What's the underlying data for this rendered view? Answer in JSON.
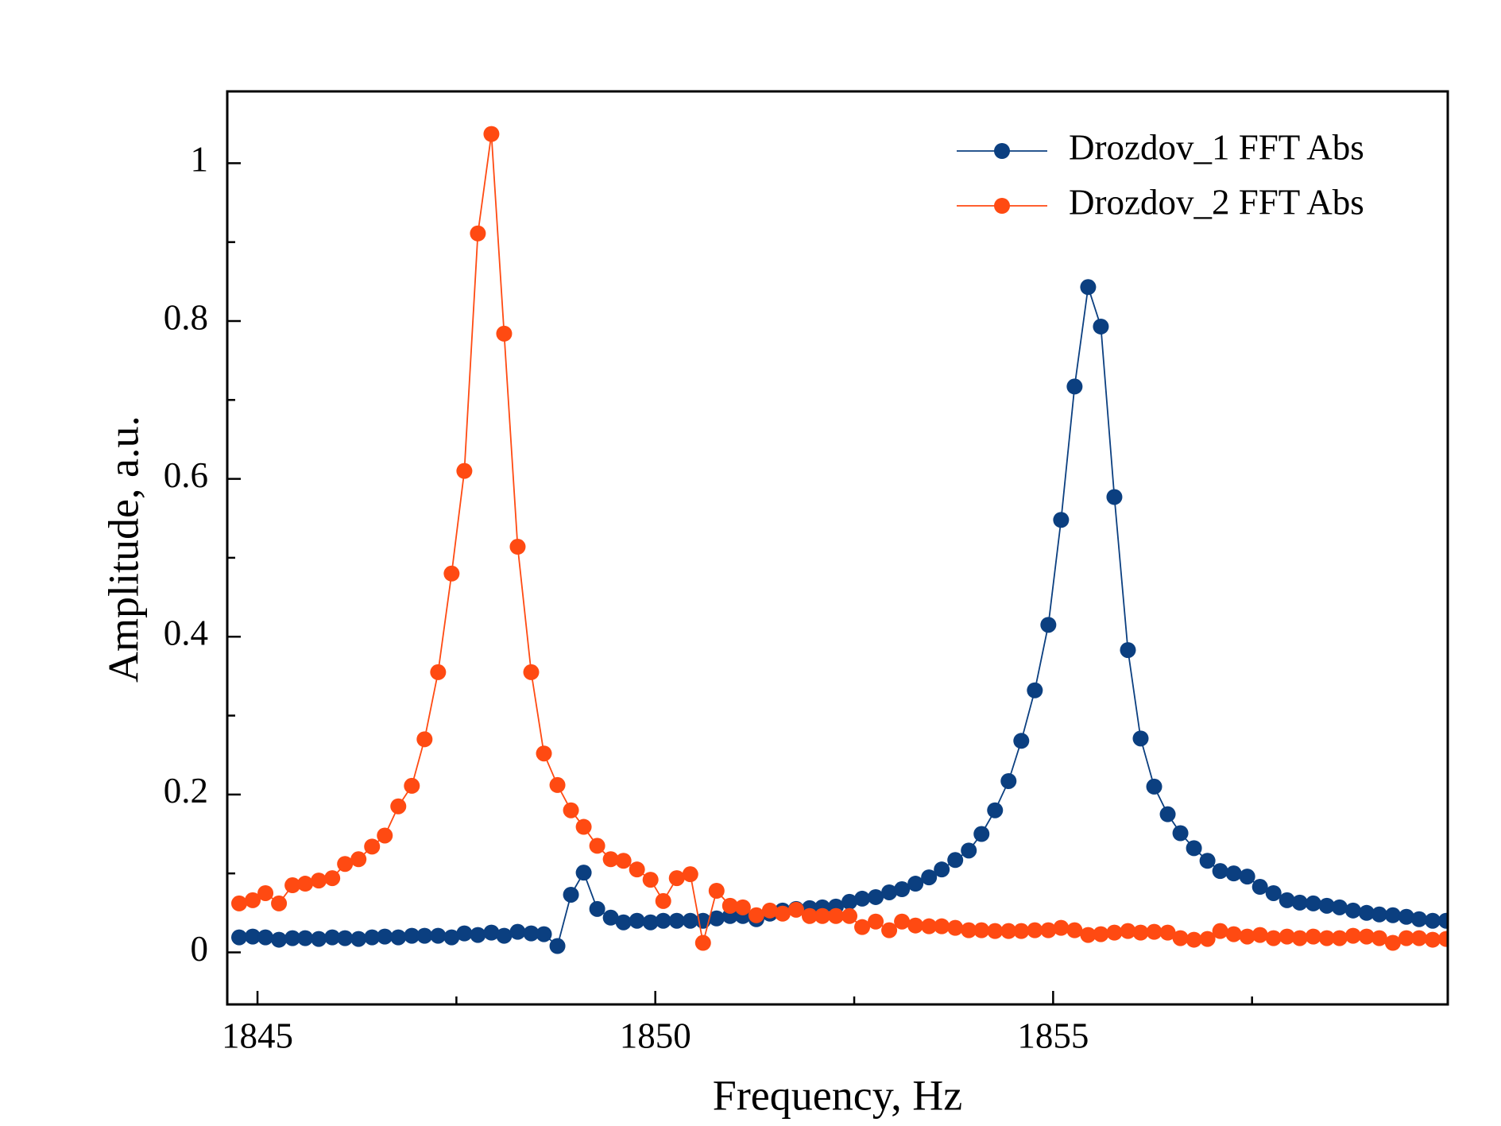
{
  "chart_data": {
    "type": "line",
    "xlabel": "Frequency, Hz",
    "ylabel": "Amplitude, a.u.",
    "xlim": [
      1844.62,
      1859.96
    ],
    "ylim": [
      -0.066,
      1.091
    ],
    "xticks": [
      1845,
      1850,
      1855
    ],
    "xminorticks": [
      1847.5,
      1852.5,
      1857.5
    ],
    "yticks": [
      0,
      0.2,
      0.4,
      0.6,
      0.8,
      1
    ],
    "yminorticks": [
      0.1,
      0.3,
      0.5,
      0.7,
      0.9
    ],
    "legend": "upper right",
    "x": [
      1844.77,
      1844.94,
      1845.1,
      1845.27,
      1845.44,
      1845.6,
      1845.77,
      1845.94,
      1846.1,
      1846.27,
      1846.44,
      1846.6,
      1846.77,
      1846.94,
      1847.1,
      1847.27,
      1847.44,
      1847.6,
      1847.77,
      1847.94,
      1848.1,
      1848.27,
      1848.44,
      1848.6,
      1848.77,
      1848.94,
      1849.1,
      1849.27,
      1849.44,
      1849.6,
      1849.77,
      1849.94,
      1850.1,
      1850.27,
      1850.44,
      1850.6,
      1850.77,
      1850.94,
      1851.1,
      1851.27,
      1851.44,
      1851.6,
      1851.77,
      1851.94,
      1852.1,
      1852.27,
      1852.44,
      1852.6,
      1852.77,
      1852.94,
      1853.1,
      1853.27,
      1853.44,
      1853.6,
      1853.77,
      1853.94,
      1854.1,
      1854.27,
      1854.44,
      1854.6,
      1854.77,
      1854.94,
      1855.1,
      1855.27,
      1855.44,
      1855.6,
      1855.77,
      1855.94,
      1856.1,
      1856.27,
      1856.44,
      1856.6,
      1856.77,
      1856.94,
      1857.1,
      1857.27,
      1857.44,
      1857.6,
      1857.77,
      1857.94,
      1858.1,
      1858.27,
      1858.44,
      1858.6,
      1858.77,
      1858.94,
      1859.1,
      1859.27,
      1859.44,
      1859.6,
      1859.77,
      1859.94
    ],
    "series": [
      {
        "name": "Drozdov_1 FFT Abs",
        "color": "#0b3f80",
        "values": [
          0.019,
          0.02,
          0.019,
          0.016,
          0.018,
          0.018,
          0.017,
          0.019,
          0.018,
          0.017,
          0.019,
          0.02,
          0.019,
          0.021,
          0.021,
          0.021,
          0.019,
          0.024,
          0.022,
          0.025,
          0.021,
          0.026,
          0.024,
          0.023,
          0.008,
          0.073,
          0.101,
          0.055,
          0.044,
          0.038,
          0.04,
          0.038,
          0.04,
          0.04,
          0.04,
          0.04,
          0.043,
          0.046,
          0.046,
          0.042,
          0.049,
          0.053,
          0.055,
          0.056,
          0.057,
          0.058,
          0.064,
          0.068,
          0.07,
          0.076,
          0.08,
          0.087,
          0.095,
          0.105,
          0.117,
          0.129,
          0.15,
          0.18,
          0.217,
          0.268,
          0.332,
          0.415,
          0.548,
          0.717,
          0.843,
          0.793,
          0.577,
          0.383,
          0.271,
          0.21,
          0.175,
          0.151,
          0.132,
          0.116,
          0.103,
          0.1,
          0.096,
          0.083,
          0.075,
          0.066,
          0.063,
          0.062,
          0.059,
          0.057,
          0.053,
          0.05,
          0.048,
          0.047,
          0.045,
          0.042,
          0.04,
          0.04
        ]
      },
      {
        "name": "Drozdov_2 FFT Abs",
        "color": "#ff4a12",
        "values": [
          0.062,
          0.066,
          0.075,
          0.062,
          0.085,
          0.087,
          0.091,
          0.094,
          0.112,
          0.118,
          0.134,
          0.148,
          0.185,
          0.211,
          0.27,
          0.355,
          0.48,
          0.61,
          0.911,
          1.037,
          0.784,
          0.514,
          0.355,
          0.252,
          0.212,
          0.18,
          0.159,
          0.135,
          0.118,
          0.116,
          0.105,
          0.092,
          0.065,
          0.094,
          0.099,
          0.012,
          0.078,
          0.059,
          0.057,
          0.047,
          0.053,
          0.049,
          0.054,
          0.046,
          0.046,
          0.046,
          0.046,
          0.032,
          0.039,
          0.028,
          0.039,
          0.034,
          0.033,
          0.033,
          0.031,
          0.028,
          0.028,
          0.027,
          0.027,
          0.027,
          0.028,
          0.028,
          0.031,
          0.028,
          0.022,
          0.023,
          0.025,
          0.027,
          0.025,
          0.026,
          0.025,
          0.018,
          0.016,
          0.017,
          0.027,
          0.023,
          0.02,
          0.022,
          0.018,
          0.02,
          0.018,
          0.02,
          0.018,
          0.018,
          0.021,
          0.02,
          0.018,
          0.012,
          0.018,
          0.018,
          0.016,
          0.017
        ]
      }
    ]
  }
}
